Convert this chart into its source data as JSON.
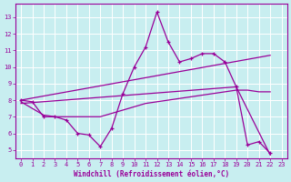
{
  "bg_color": "#c8eef0",
  "grid_color": "#ffffff",
  "line_color": "#990099",
  "xlabel": "Windchill (Refroidissement éolien,°C)",
  "xlim": [
    -0.5,
    23.5
  ],
  "ylim": [
    4.5,
    13.8
  ],
  "xticks": [
    0,
    1,
    2,
    3,
    4,
    5,
    6,
    7,
    8,
    9,
    10,
    11,
    12,
    13,
    14,
    15,
    16,
    17,
    18,
    19,
    20,
    21,
    22,
    23
  ],
  "yticks": [
    5,
    6,
    7,
    8,
    9,
    10,
    11,
    12,
    13
  ],
  "line1_x": [
    0,
    1,
    2,
    3,
    4,
    5,
    6,
    7,
    8,
    9,
    10,
    11,
    12,
    13,
    14,
    15,
    16,
    17,
    18,
    19,
    20,
    21,
    22
  ],
  "line1_y": [
    8.0,
    7.9,
    7.0,
    7.0,
    6.8,
    6.0,
    5.9,
    5.2,
    6.3,
    8.4,
    10.0,
    11.2,
    13.3,
    11.5,
    10.3,
    10.5,
    10.8,
    10.8,
    10.3,
    8.8,
    5.3,
    5.5,
    4.8
  ],
  "line2_x": [
    0,
    22
  ],
  "line2_y": [
    8.0,
    10.7
  ],
  "line3_x": [
    0,
    19,
    22
  ],
  "line3_y": [
    7.8,
    8.8,
    4.7
  ],
  "line4_x": [
    0,
    2,
    3,
    4,
    5,
    6,
    7,
    8,
    9,
    10,
    11,
    12,
    13,
    14,
    15,
    16,
    17,
    18,
    19,
    20,
    21,
    22
  ],
  "line4_y": [
    7.9,
    7.1,
    7.0,
    7.0,
    7.0,
    7.0,
    7.0,
    7.2,
    7.4,
    7.6,
    7.8,
    7.9,
    8.0,
    8.1,
    8.2,
    8.3,
    8.4,
    8.5,
    8.6,
    8.6,
    8.5,
    8.5
  ]
}
